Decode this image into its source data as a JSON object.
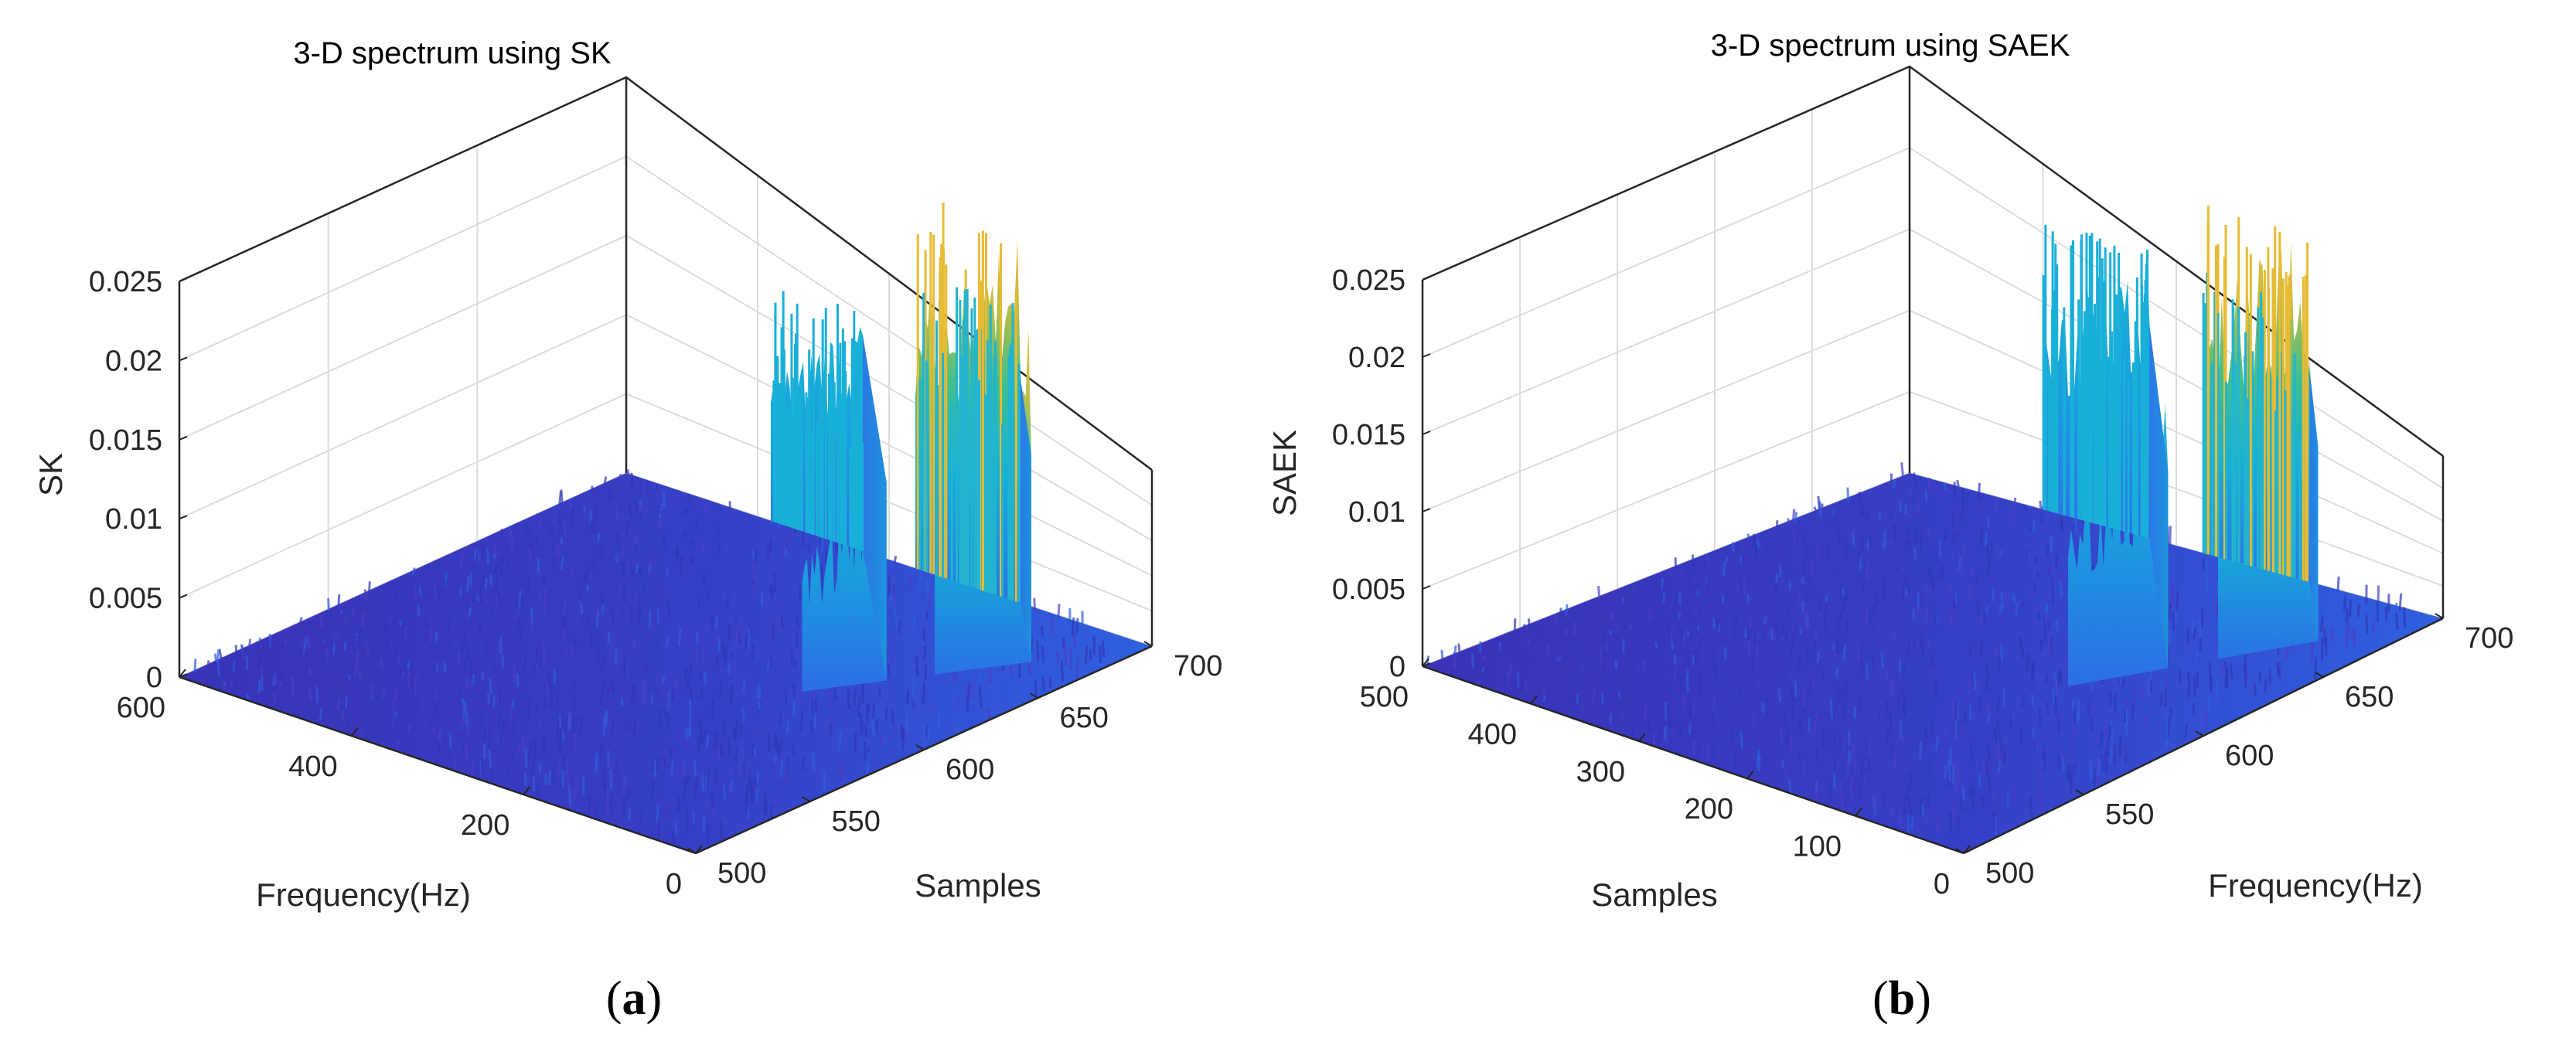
{
  "colors": {
    "low": "#3e26a8",
    "mid_low": "#2d66e6",
    "mid": "#1bb3d6",
    "high_mid": "#4cbd7a",
    "high": "#f0b832",
    "grid": "#dcdcdc",
    "axis": "#262626"
  },
  "chart_data": [
    {
      "type": "surface3d",
      "panel_caption": "a",
      "title": "3-D spectrum using SK",
      "zlabel": "SK",
      "xlabel": "Frequency(Hz)",
      "ylabel": "Samples",
      "zlim": [
        0,
        0.025
      ],
      "zticks": [
        "0",
        "0.005",
        "0.01",
        "0.015",
        "0.02",
        "0.025"
      ],
      "xticks": [
        "0",
        "200",
        "400",
        "600"
      ],
      "yticks": [
        "500",
        "550",
        "600",
        "650",
        "700"
      ],
      "bands": [
        {
          "samples": [
            555,
            590
          ],
          "peak_level": 0.016,
          "color": "cyan"
        },
        {
          "samples": [
            610,
            650
          ],
          "peak_level": 0.025,
          "color": "yellow-to-cyan"
        }
      ],
      "noise_floor": 0.001
    },
    {
      "type": "surface3d",
      "panel_caption": "b",
      "title": "3-D spectrum using SAEK",
      "zlabel": "SAEK",
      "xlabel": "Samples",
      "ylabel": "Frequency(Hz)",
      "zlim": [
        0,
        0.025
      ],
      "zticks": [
        "0",
        "0.005",
        "0.01",
        "0.015",
        "0.02",
        "0.025"
      ],
      "xticks": [
        "0",
        "100",
        "200",
        "300",
        "400",
        "500"
      ],
      "yticks": [
        "500",
        "550",
        "600",
        "650",
        "700"
      ],
      "bands": [
        {
          "samples": [
            550,
            590
          ],
          "peak_level": 0.02,
          "color": "cyan"
        },
        {
          "samples": [
            610,
            650
          ],
          "peak_level": 0.024,
          "color": "yellow-to-cyan"
        }
      ],
      "noise_floor": 0.001
    }
  ]
}
